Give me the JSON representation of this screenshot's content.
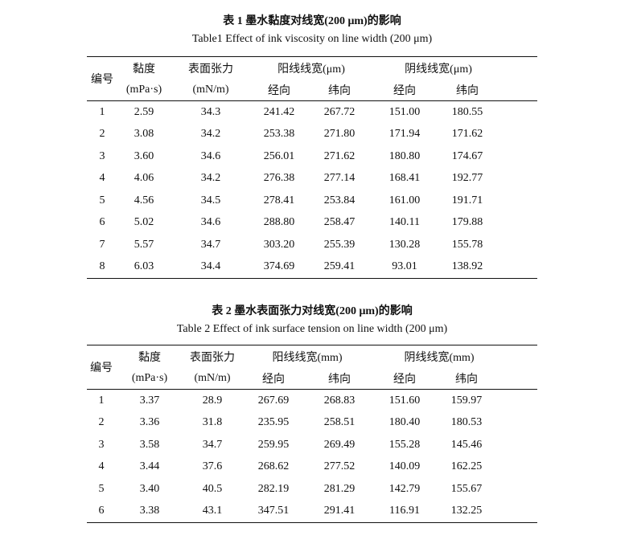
{
  "table1": {
    "title": "表 1 墨水黏度对线宽(200 μm)的影响",
    "subtitle": "Table1 Effect of ink viscosity on line width (200 μm)",
    "headers": {
      "id": "编号",
      "viscosity": "黏度",
      "viscosity_unit": "(mPa·s)",
      "tension": "表面张力",
      "tension_unit": "(mN/m)",
      "positive": "阳线线宽(μm)",
      "negative": "阴线线宽(μm)",
      "warp": "经向",
      "weft": "纬向"
    },
    "rows": [
      [
        "1",
        "2.59",
        "34.3",
        "241.42",
        "267.72",
        "151.00",
        "180.55"
      ],
      [
        "2",
        "3.08",
        "34.2",
        "253.38",
        "271.80",
        "171.94",
        "171.62"
      ],
      [
        "3",
        "3.60",
        "34.6",
        "256.01",
        "271.62",
        "180.80",
        "174.67"
      ],
      [
        "4",
        "4.06",
        "34.2",
        "276.38",
        "277.14",
        "168.41",
        "192.77"
      ],
      [
        "5",
        "4.56",
        "34.5",
        "278.41",
        "253.84",
        "161.00",
        "191.71"
      ],
      [
        "6",
        "5.02",
        "34.6",
        "288.80",
        "258.47",
        "140.11",
        "179.88"
      ],
      [
        "7",
        "5.57",
        "34.7",
        "303.20",
        "255.39",
        "130.28",
        "155.78"
      ],
      [
        "8",
        "6.03",
        "34.4",
        "374.69",
        "259.41",
        "93.01",
        "138.92"
      ]
    ]
  },
  "table2": {
    "title": "表 2 墨水表面张力对线宽(200 μm)的影响",
    "subtitle": "Table 2 Effect of ink surface tension on line width (200 μm)",
    "headers": {
      "id": "编号",
      "viscosity": "黏度",
      "viscosity_unit": "(mPa·s)",
      "tension": "表面张力",
      "tension_unit": "(mN/m)",
      "positive": "阳线线宽(mm)",
      "negative": "阴线线宽(mm)",
      "warp": "经向",
      "weft": "纬向"
    },
    "rows": [
      [
        "1",
        "3.37",
        "28.9",
        "267.69",
        "268.83",
        "151.60",
        "159.97"
      ],
      [
        "2",
        "3.36",
        "31.8",
        "235.95",
        "258.51",
        "180.40",
        "180.53"
      ],
      [
        "3",
        "3.58",
        "34.7",
        "259.95",
        "269.49",
        "155.28",
        "145.46"
      ],
      [
        "4",
        "3.44",
        "37.6",
        "268.62",
        "277.52",
        "140.09",
        "162.25"
      ],
      [
        "5",
        "3.40",
        "40.5",
        "282.19",
        "281.29",
        "142.79",
        "155.67"
      ],
      [
        "6",
        "3.38",
        "43.1",
        "347.51",
        "291.41",
        "116.91",
        "132.25"
      ]
    ]
  }
}
